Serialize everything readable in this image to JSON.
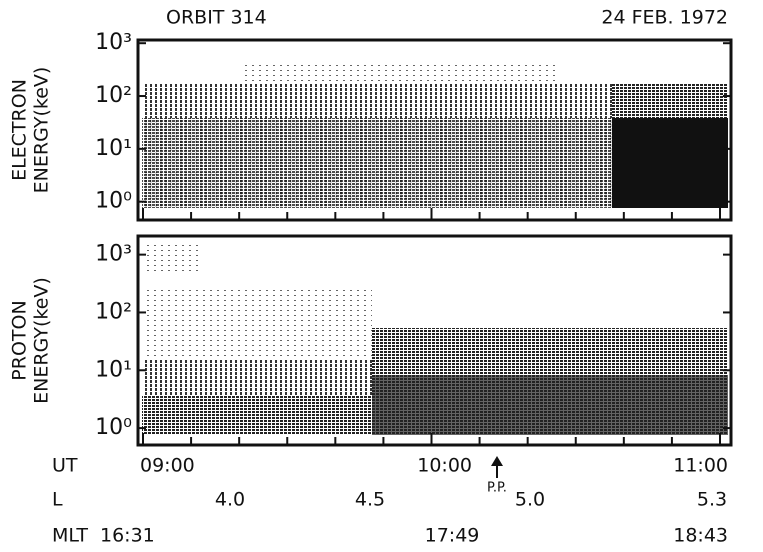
{
  "header": {
    "left": "ORBIT 314",
    "right": "24 FEB. 1972"
  },
  "panels": [
    {
      "ylabel": [
        "ELECTRON",
        "ENERGY(keV)"
      ],
      "log": true,
      "ylim": [
        0.45,
        1150
      ],
      "yticks": [
        {
          "value": 1,
          "label": "10⁰"
        },
        {
          "value": 10,
          "label": "10¹"
        },
        {
          "value": 100,
          "label": "10²"
        },
        {
          "value": 1000,
          "label": "10³"
        }
      ]
    },
    {
      "ylabel": [
        "PROTON",
        "ENERGY(keV)"
      ],
      "log": true,
      "ylim": [
        0.51,
        2100
      ],
      "yticks": [
        {
          "value": 1,
          "label": "10⁰"
        },
        {
          "value": 10,
          "label": "10¹"
        },
        {
          "value": 100,
          "label": "10²"
        },
        {
          "value": 1000,
          "label": "10³"
        }
      ]
    }
  ],
  "x_rows": [
    {
      "label": "UT",
      "ticks": [
        "09:00",
        "10:00",
        "11:00"
      ]
    },
    {
      "label": "L",
      "ticks": [
        "4.0",
        "4.5",
        "5.0",
        "5.3"
      ]
    },
    {
      "label": "MLT",
      "ticks": [
        "16:31",
        "17:49",
        "18:43"
      ]
    }
  ],
  "annotation": "P.P."
}
